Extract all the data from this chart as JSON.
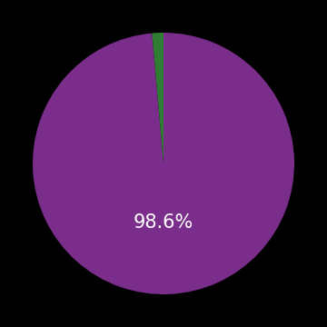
{
  "slices": [
    98.6,
    1.4
  ],
  "colors": [
    "#7B2D8B",
    "#2E7D32"
  ],
  "label_text": "98.6%",
  "label_color": "#ffffff",
  "label_fontsize": 15,
  "background_color": "#000000",
  "startangle": 90,
  "figsize": [
    3.6,
    3.6
  ],
  "dpi": 100
}
